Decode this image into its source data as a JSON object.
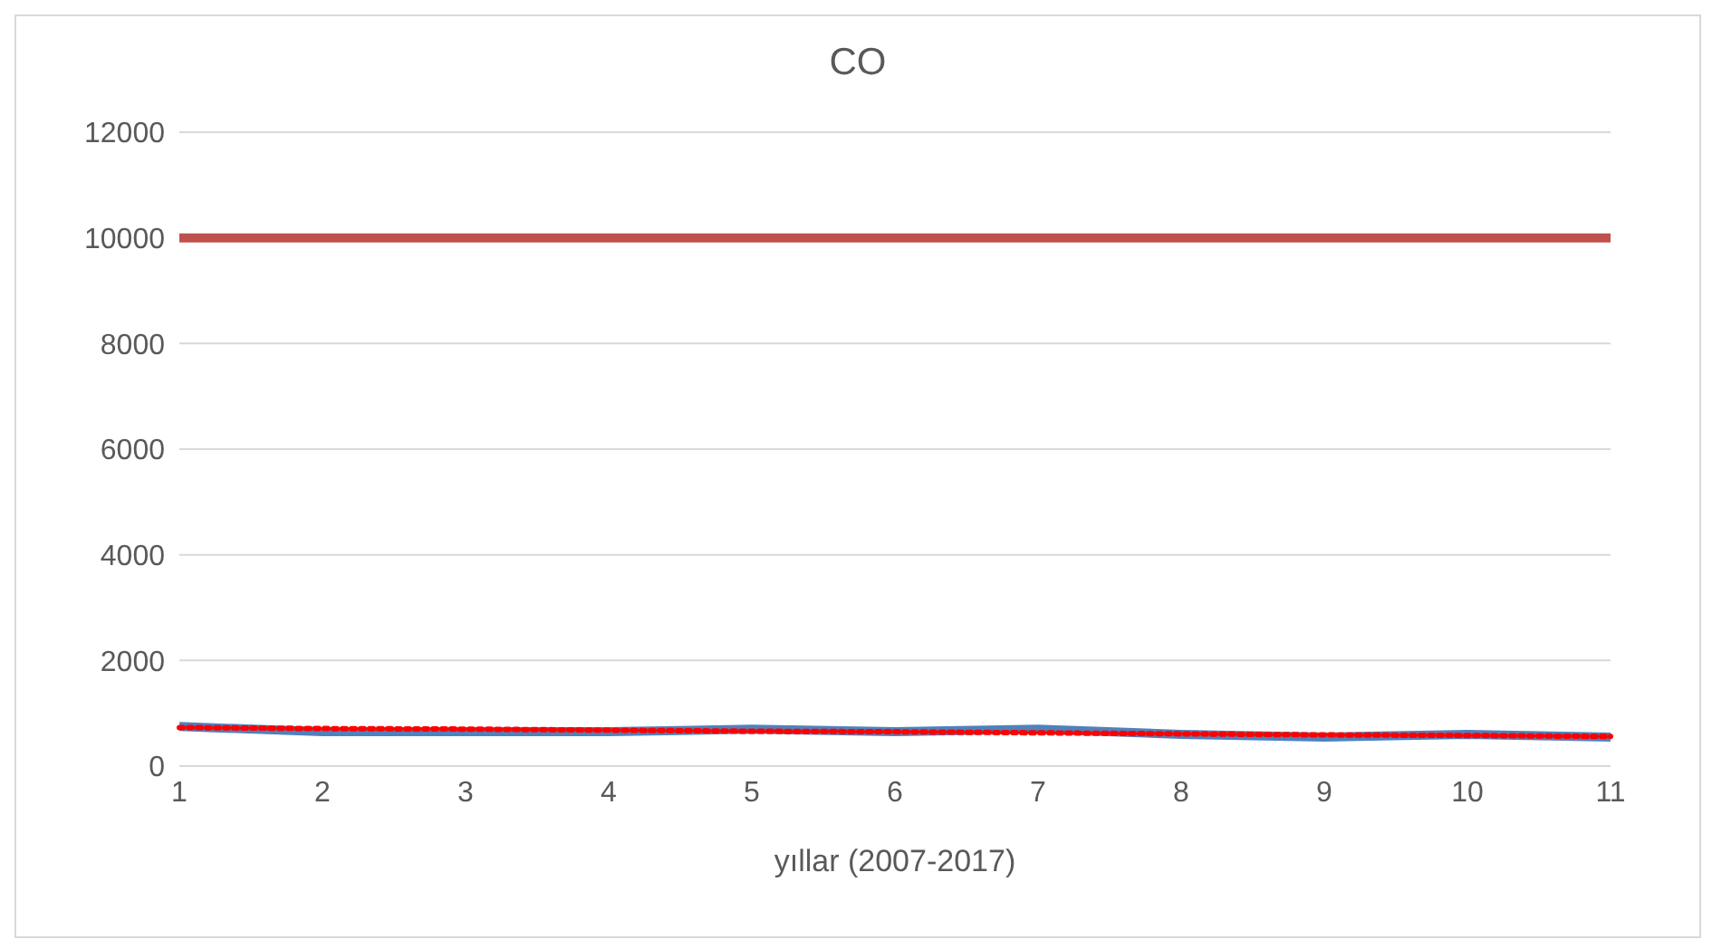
{
  "chart_data": {
    "type": "line",
    "title": "CO",
    "xlabel": "yıllar (2007-2017)",
    "categories": [
      "1",
      "2",
      "3",
      "4",
      "5",
      "6",
      "7",
      "8",
      "9",
      "10",
      "11"
    ],
    "series": [
      {
        "color": "#c0504d",
        "values": [
          10000,
          10000,
          10000,
          10000,
          10000,
          10000,
          10000,
          10000,
          10000,
          10000,
          10000
        ]
      },
      {
        "color": "#4f81bd",
        "values": [
          750,
          650,
          650,
          650,
          700,
          650,
          700,
          600,
          550,
          600,
          550
        ]
      },
      {
        "type": "line",
        "color": "#ff0000",
        "line_style": "dotted",
        "values": [
          730,
          710,
          700,
          680,
          660,
          650,
          630,
          610,
          590,
          580,
          560
        ]
      }
    ],
    "ylim": [
      0,
      12000
    ],
    "yticks": [
      0,
      2000,
      4000,
      6000,
      8000,
      10000,
      12000
    ],
    "grid": "y",
    "marker": "none",
    "legend": false,
    "line_style": "solid"
  }
}
